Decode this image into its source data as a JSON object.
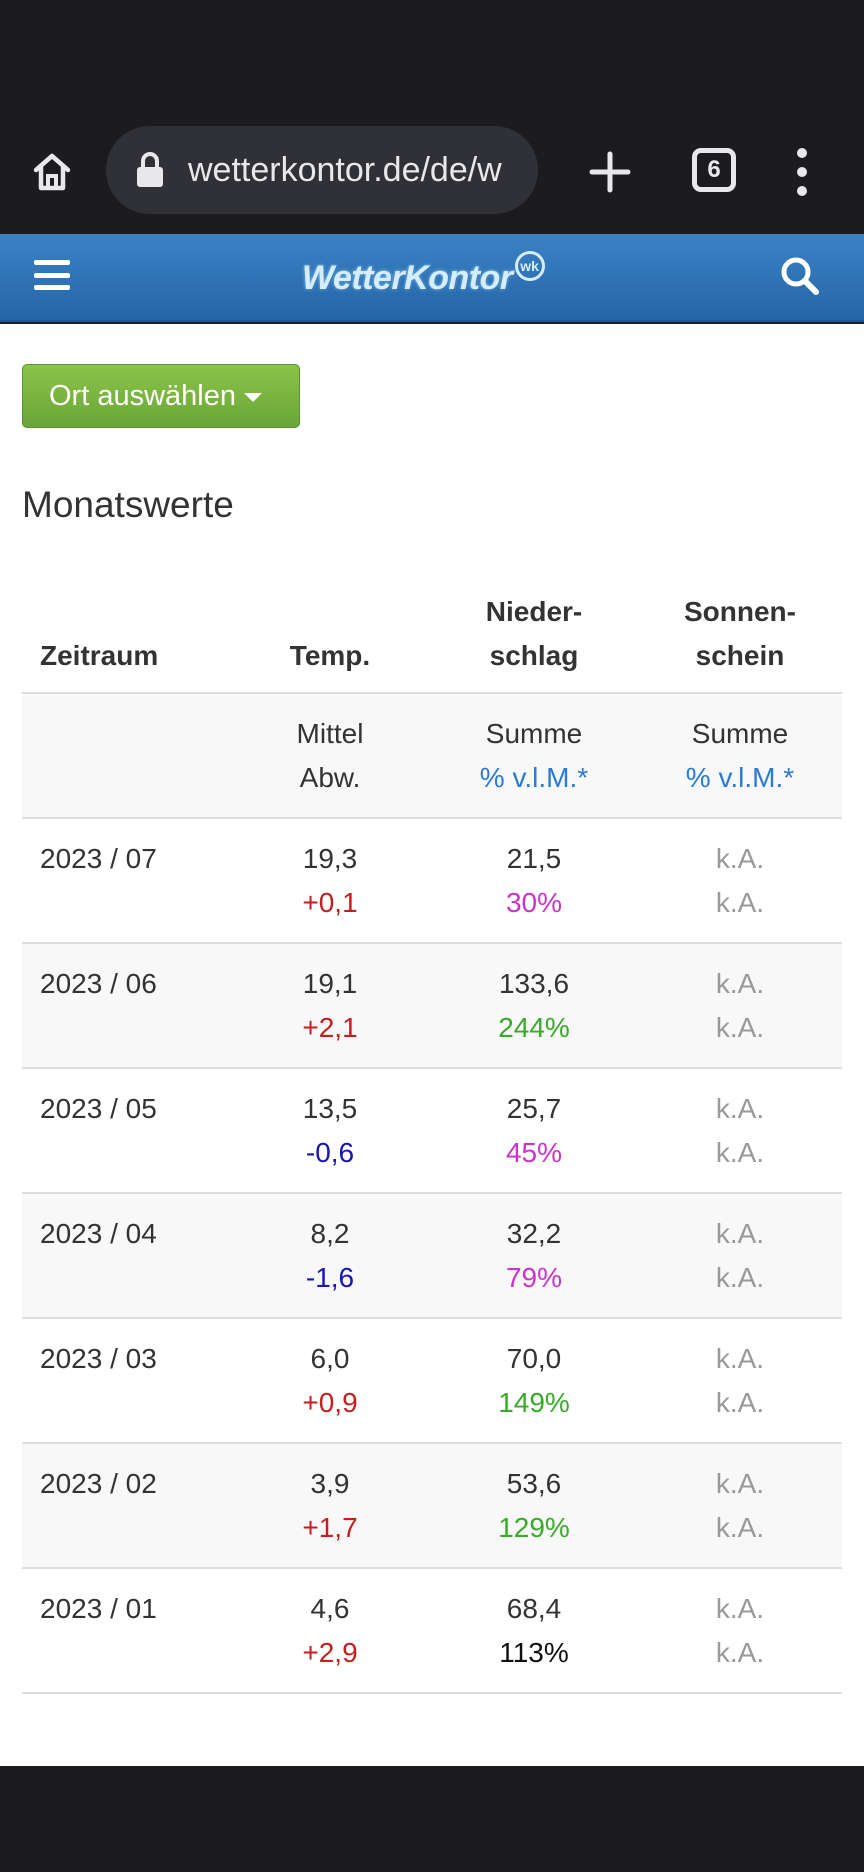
{
  "browser": {
    "url": "wetterkontor.de/de/w",
    "tab_count": "6"
  },
  "site": {
    "logo_text": "WetterKontor",
    "logo_mark": "wk"
  },
  "page": {
    "location_button": "Ort auswählen",
    "section_title": "Monatswerte"
  },
  "table": {
    "headers": {
      "zeitraum": "Zeitraum",
      "temp": "Temp.",
      "niederschlag_1": "Nieder-",
      "niederschlag_2": "schlag",
      "sonnenschein_1": "Sonnen-",
      "sonnenschein_2": "schein"
    },
    "subheader": {
      "temp_1": "Mittel",
      "temp_2": "Abw.",
      "nied_1": "Summe",
      "nied_2": "% v.l.M.*",
      "sonn_1": "Summe",
      "sonn_2": "% v.l.M.*"
    },
    "rows": [
      {
        "period": "2023 / 07",
        "temp": "19,3",
        "temp_dev": "+0,1",
        "precip": "21,5",
        "precip_pct": "30%",
        "sun": "k.A.",
        "sun_pct": "k.A."
      },
      {
        "period": "2023 / 06",
        "temp": "19,1",
        "temp_dev": "+2,1",
        "precip": "133,6",
        "precip_pct": "244%",
        "sun": "k.A.",
        "sun_pct": "k.A."
      },
      {
        "period": "2023 / 05",
        "temp": "13,5",
        "temp_dev": "-0,6",
        "precip": "25,7",
        "precip_pct": "45%",
        "sun": "k.A.",
        "sun_pct": "k.A."
      },
      {
        "period": "2023 / 04",
        "temp": "8,2",
        "temp_dev": "-1,6",
        "precip": "32,2",
        "precip_pct": "79%",
        "sun": "k.A.",
        "sun_pct": "k.A."
      },
      {
        "period": "2023 / 03",
        "temp": "6,0",
        "temp_dev": "+0,9",
        "precip": "70,0",
        "precip_pct": "149%",
        "sun": "k.A.",
        "sun_pct": "k.A."
      },
      {
        "period": "2023 / 02",
        "temp": "3,9",
        "temp_dev": "+1,7",
        "precip": "53,6",
        "precip_pct": "129%",
        "sun": "k.A.",
        "sun_pct": "k.A."
      },
      {
        "period": "2023 / 01",
        "temp": "4,6",
        "temp_dev": "+2,9",
        "precip": "68,4",
        "precip_pct": "113%",
        "sun": "k.A.",
        "sun_pct": "k.A."
      }
    ]
  },
  "colors": {
    "header_blue": "#2f75b8",
    "button_green": "#7cb342",
    "positive_dev": "#c41e1e",
    "negative_dev": "#1515b8",
    "low_precip": "#cc33cc",
    "high_precip": "#3aaa2a",
    "link_blue": "#2a7ad6"
  }
}
